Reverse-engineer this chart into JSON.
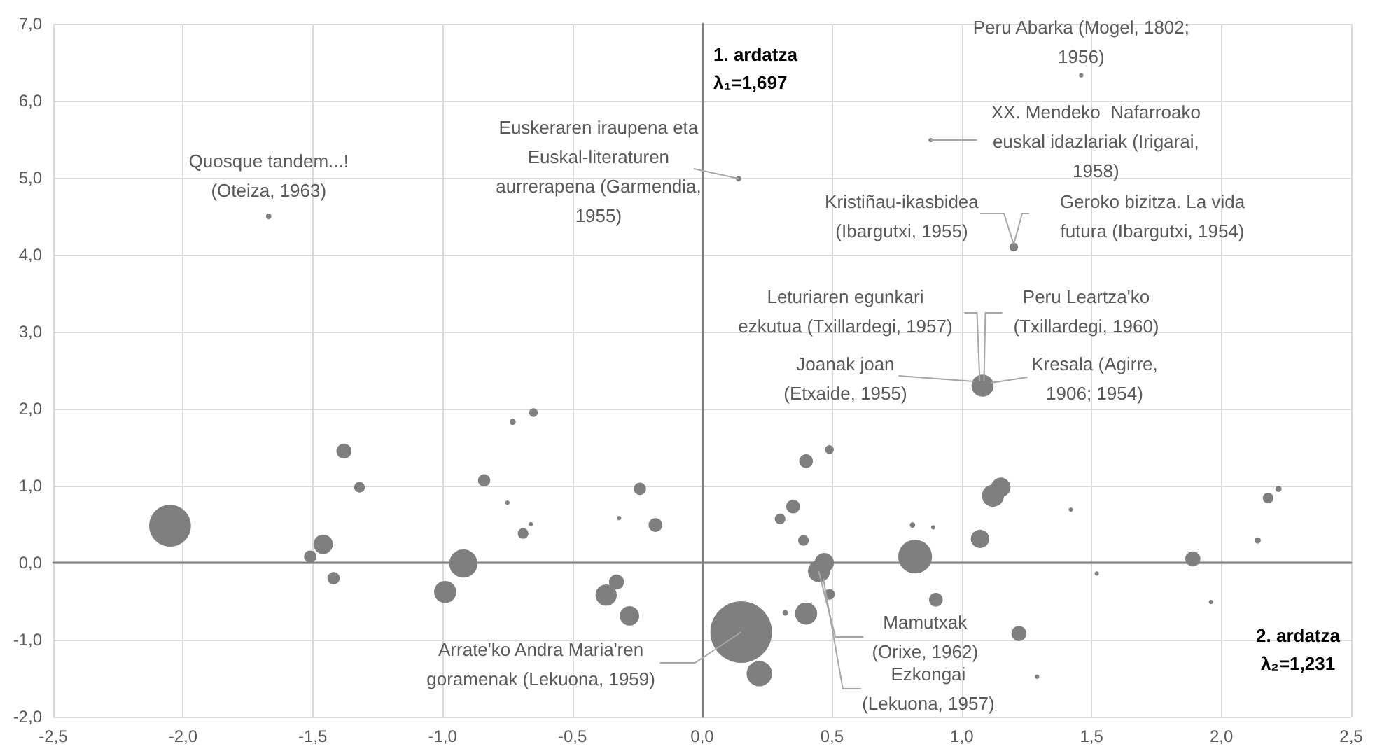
{
  "chart_data": {
    "type": "bubble",
    "xlabel": "2. ardatza\nλ₂=1,231",
    "ylabel": "1. ardatza\nλ₁=1,697",
    "x": [
      -2.05,
      -1.38,
      -1.32,
      -1.46,
      -1.51,
      -1.42,
      -0.73,
      -0.65,
      -0.84,
      -0.75,
      -0.66,
      -0.69,
      -0.92,
      -0.99,
      -0.24,
      -0.32,
      -0.18,
      -0.33,
      -0.37,
      -0.28,
      0.4,
      0.49,
      0.35,
      0.3,
      0.39,
      0.47,
      0.45,
      0.49,
      0.32,
      0.4,
      0.15,
      0.22,
      0.81,
      0.89,
      0.82,
      0.9,
      1.15,
      1.12,
      1.07,
      1.22,
      1.29,
      1.42,
      1.52,
      1.89,
      1.96,
      2.14,
      2.18,
      2.22,
      -1.67,
      0.14,
      1.46,
      0.88,
      1.2,
      1.08
    ],
    "values": [
      0.48,
      1.45,
      0.98,
      0.24,
      0.08,
      -0.2,
      1.83,
      1.95,
      1.07,
      0.78,
      0.5,
      0.38,
      -0.01,
      -0.38,
      0.96,
      0.58,
      0.49,
      -0.25,
      -0.42,
      -0.69,
      1.32,
      1.47,
      0.73,
      0.57,
      0.29,
      0.0,
      -0.11,
      -0.41,
      -0.65,
      -0.66,
      -0.9,
      -1.44,
      0.49,
      0.46,
      0.08,
      -0.48,
      0.98,
      0.87,
      0.31,
      -0.92,
      -1.48,
      0.69,
      -0.14,
      0.05,
      -0.51,
      0.29,
      0.84,
      0.96,
      4.5,
      4.99,
      6.33,
      5.49,
      4.1,
      2.3
    ],
    "sizes": [
      0.46,
      0.06,
      0.03,
      0.1,
      0.04,
      0.04,
      0.01,
      0.02,
      0.04,
      0.005,
      0.005,
      0.03,
      0.21,
      0.13,
      0.04,
      0.005,
      0.05,
      0.06,
      0.12,
      0.1,
      0.05,
      0.02,
      0.05,
      0.03,
      0.03,
      0.1,
      0.13,
      0.03,
      0.008,
      0.13,
      1,
      0.17,
      0.008,
      0.005,
      0.3,
      0.05,
      0.1,
      0.13,
      0.09,
      0.06,
      0.005,
      0.005,
      0.005,
      0.06,
      0.005,
      0.01,
      0.03,
      0.01,
      0.008,
      0.008,
      0.005,
      0.005,
      0.02,
      0.13
    ],
    "color": "#7f7f7f",
    "xlim": [
      -2.5,
      2.5
    ],
    "xticks": [
      {
        "value": -2.5,
        "label": "-2,5"
      },
      {
        "value": -2,
        "label": "-2,0"
      },
      {
        "value": -1.5,
        "label": "-1,5"
      },
      {
        "value": -1,
        "label": "-1,0"
      },
      {
        "value": -0.5,
        "label": "-0,5"
      },
      {
        "value": 0,
        "label": "0,0"
      },
      {
        "value": 0.5,
        "label": "0,5"
      },
      {
        "value": 1,
        "label": "1,0"
      },
      {
        "value": 1.5,
        "label": "1,5"
      },
      {
        "value": 2,
        "label": "2,0"
      },
      {
        "value": 2.5,
        "label": "2,5"
      }
    ],
    "ylim": [
      -2,
      7
    ],
    "yticks": [
      {
        "value": -2,
        "label": "-2,0"
      },
      {
        "value": -1,
        "label": "-1,0"
      },
      {
        "value": 0,
        "label": "0,0"
      },
      {
        "value": 1,
        "label": "1,0"
      },
      {
        "value": 2,
        "label": "2,0"
      },
      {
        "value": 3,
        "label": "3,0"
      },
      {
        "value": 4,
        "label": "4,0"
      },
      {
        "value": 5,
        "label": "5,0"
      },
      {
        "value": 6,
        "label": "6,0"
      },
      {
        "value": 7,
        "label": "7,0"
      }
    ],
    "grid": true,
    "annotations": [
      {
        "text": "Quosque tandem...!\n(Oteiza, 1963)",
        "x": -1.67,
        "y": 4.5
      },
      {
        "text": "Euskeraren iraupena eta\nEuskal-literaturen\naurrerapena (Garmendia,\n1955)",
        "x": 0.14,
        "y": 4.99
      },
      {
        "text": "Peru Abarka (Mogel, 1802;\n1956)",
        "x": 1.46,
        "y": 6.33
      },
      {
        "text": "XX. Mendeko  Nafarroako\neuskal idazlariak (Irigarai,\n1958)",
        "x": 0.88,
        "y": 5.49
      },
      {
        "text": "Kristiñau-ikasbidea\n(Ibargutxi, 1955)",
        "x": 1.2,
        "y": 4.1
      },
      {
        "text": "Geroko bizitza. La vida\nfutura (Ibargutxi, 1954)",
        "x": 1.2,
        "y": 4.1
      },
      {
        "text": "Leturiaren egunkari\nezkutua (Txillardegi, 1957)",
        "x": 1.08,
        "y": 2.3
      },
      {
        "text": "Peru Leartza'ko\n(Txillardegi, 1960)",
        "x": 1.08,
        "y": 2.3
      },
      {
        "text": "Joanak joan\n(Etxaide, 1955)",
        "x": 1.08,
        "y": 2.3
      },
      {
        "text": "Kresala (Agirre,\n1906; 1954)",
        "x": 1.08,
        "y": 2.3
      },
      {
        "text": "Arrate'ko Andra Maria'ren\ngoramenak (Lekuona, 1959)",
        "x": 0.15,
        "y": -0.9
      },
      {
        "text": "Mamutxak\n(Orixe, 1962)",
        "x": 0.47,
        "y": 0.0
      },
      {
        "text": "Ezkongai\n(Lekuona, 1957)",
        "x": 0.45,
        "y": -0.11
      }
    ]
  }
}
